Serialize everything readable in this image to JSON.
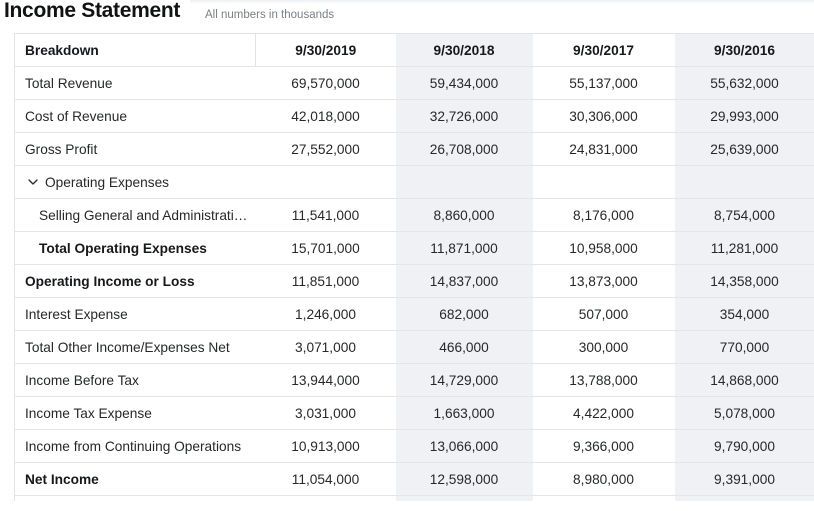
{
  "page": {
    "title": "Income Statement",
    "subtitle": "All numbers in thousands"
  },
  "colors": {
    "alt_column_bg": "#eff1f4",
    "row_border": "#e3e5e9",
    "table_border": "#e0e3e7",
    "text_primary": "#26282a",
    "text_bold": "#16181b",
    "text_secondary": "#7b8088"
  },
  "table": {
    "columns": [
      {
        "label": "Breakdown"
      },
      {
        "label": "9/30/2019"
      },
      {
        "label": "9/30/2018"
      },
      {
        "label": "9/30/2017"
      },
      {
        "label": "9/30/2016"
      }
    ],
    "rows": [
      {
        "label": "Total Revenue",
        "indent": 0,
        "bold": false,
        "expandable": false,
        "values": [
          "69,570,000",
          "59,434,000",
          "55,137,000",
          "55,632,000"
        ]
      },
      {
        "label": "Cost of Revenue",
        "indent": 0,
        "bold": false,
        "expandable": false,
        "values": [
          "42,018,000",
          "32,726,000",
          "30,306,000",
          "29,993,000"
        ]
      },
      {
        "label": "Gross Profit",
        "indent": 0,
        "bold": false,
        "expandable": false,
        "values": [
          "27,552,000",
          "26,708,000",
          "24,831,000",
          "25,639,000"
        ]
      },
      {
        "label": "Operating Expenses",
        "indent": 1,
        "bold": false,
        "expandable": true,
        "values": [
          "",
          "",
          "",
          ""
        ]
      },
      {
        "label": "Selling General and Administrati…",
        "indent": 2,
        "bold": false,
        "expandable": false,
        "values": [
          "11,541,000",
          "8,860,000",
          "8,176,000",
          "8,754,000"
        ]
      },
      {
        "label": "Total Operating Expenses",
        "indent": 2,
        "bold": true,
        "expandable": false,
        "values": [
          "15,701,000",
          "11,871,000",
          "10,958,000",
          "11,281,000"
        ]
      },
      {
        "label": "Operating Income or Loss",
        "indent": 0,
        "bold": true,
        "expandable": false,
        "values": [
          "11,851,000",
          "14,837,000",
          "13,873,000",
          "14,358,000"
        ]
      },
      {
        "label": "Interest Expense",
        "indent": 0,
        "bold": false,
        "expandable": false,
        "values": [
          "1,246,000",
          "682,000",
          "507,000",
          "354,000"
        ]
      },
      {
        "label": "Total Other Income/Expenses Net",
        "indent": 0,
        "bold": false,
        "expandable": false,
        "values": [
          "3,071,000",
          "466,000",
          "300,000",
          "770,000"
        ]
      },
      {
        "label": "Income Before Tax",
        "indent": 0,
        "bold": false,
        "expandable": false,
        "values": [
          "13,944,000",
          "14,729,000",
          "13,788,000",
          "14,868,000"
        ]
      },
      {
        "label": "Income Tax Expense",
        "indent": 0,
        "bold": false,
        "expandable": false,
        "values": [
          "3,031,000",
          "1,663,000",
          "4,422,000",
          "5,078,000"
        ]
      },
      {
        "label": "Income from Continuing Operations",
        "indent": 0,
        "bold": false,
        "expandable": false,
        "values": [
          "10,913,000",
          "13,066,000",
          "9,366,000",
          "9,790,000"
        ]
      },
      {
        "label": "Net Income",
        "indent": 0,
        "bold": true,
        "expandable": false,
        "values": [
          "11,054,000",
          "12,598,000",
          "8,980,000",
          "9,391,000"
        ]
      }
    ]
  }
}
